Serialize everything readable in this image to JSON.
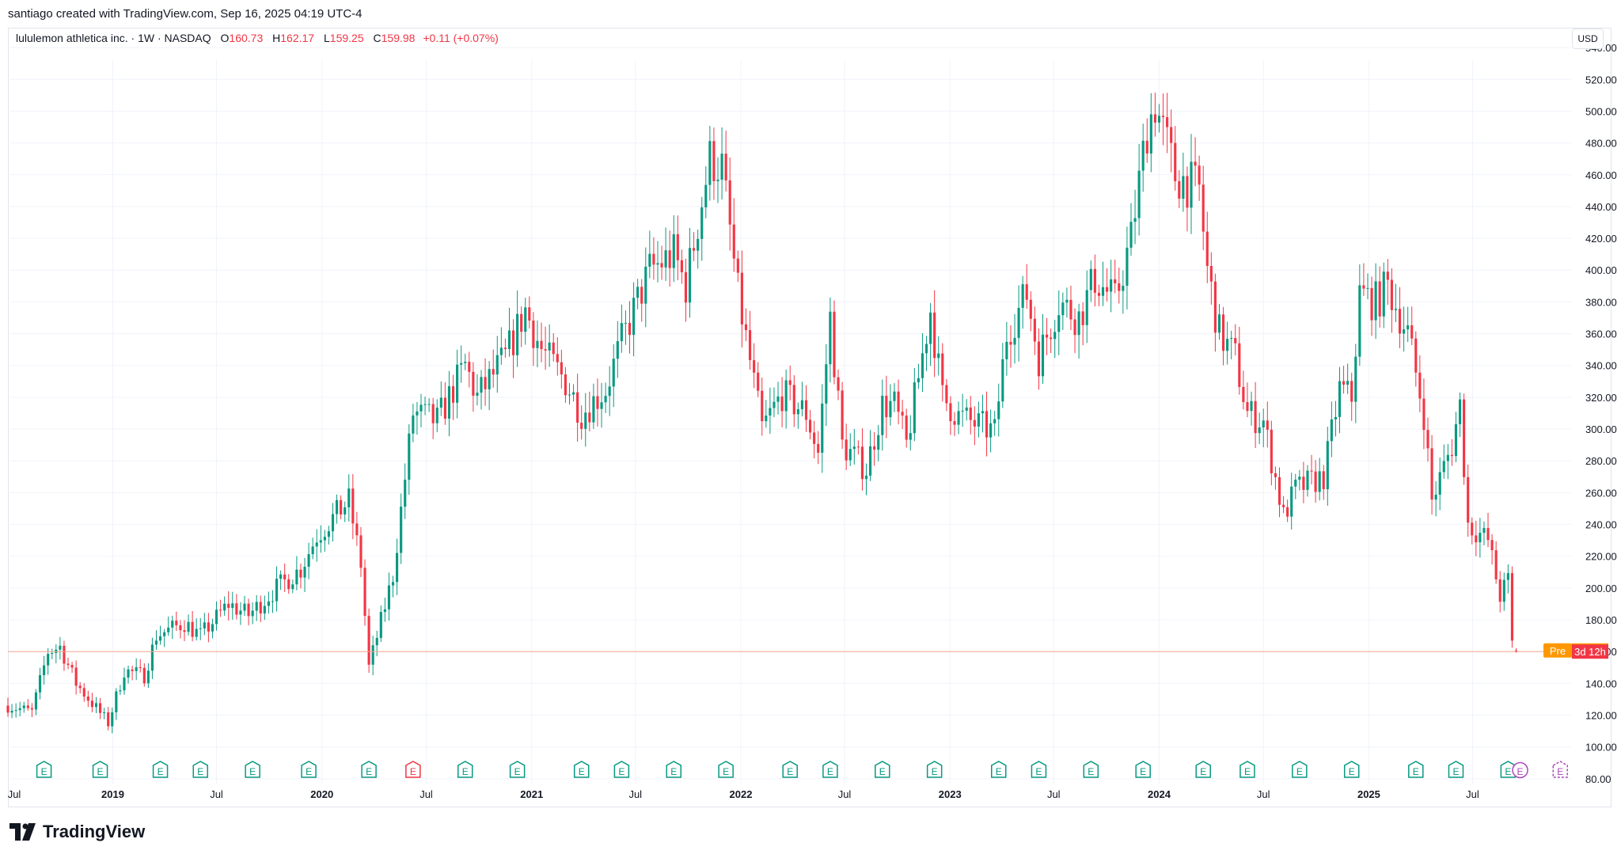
{
  "header": {
    "attribution": "santiago created with TradingView.com, Sep 16, 2025 04:19 UTC-4"
  },
  "legend": {
    "symbol": "lululemon athletica inc. · 1W · NASDAQ",
    "open_label": "O",
    "open": "160.73",
    "high_label": "H",
    "high": "162.17",
    "low_label": "L",
    "low": "159.25",
    "close_label": "C",
    "close": "159.98",
    "change": "+0.11 (+0.07%)"
  },
  "currency": "USD",
  "brand": {
    "name": "TradingView"
  },
  "colors": {
    "up": "#089981",
    "down": "#f23645",
    "premarket": "#ff9800",
    "current_line": "#f7a78e",
    "earnings_purple": "#ab47bc"
  },
  "chart_data": {
    "type": "candlestick",
    "interval": "1W",
    "y_axis": {
      "range": [
        62,
        552
      ],
      "ticks": [
        80,
        100,
        120,
        140,
        160,
        180,
        200,
        220,
        240,
        260,
        280,
        300,
        320,
        340,
        360,
        380,
        400,
        420,
        440,
        460,
        480,
        500,
        520,
        540
      ]
    },
    "x_axis": {
      "start": "2018-07-02",
      "end": "2025-12-20",
      "labels": [
        {
          "date": "2018-07-01",
          "text": "Jul",
          "bold": false
        },
        {
          "date": "2019-01-01",
          "text": "2019",
          "bold": true
        },
        {
          "date": "2019-07-01",
          "text": "Jul",
          "bold": false
        },
        {
          "date": "2020-01-01",
          "text": "2020",
          "bold": true
        },
        {
          "date": "2020-07-01",
          "text": "Jul",
          "bold": false
        },
        {
          "date": "2021-01-01",
          "text": "2021",
          "bold": true
        },
        {
          "date": "2021-07-01",
          "text": "Jul",
          "bold": false
        },
        {
          "date": "2022-01-01",
          "text": "2022",
          "bold": true
        },
        {
          "date": "2022-07-01",
          "text": "Jul",
          "bold": false
        },
        {
          "date": "2023-01-01",
          "text": "2023",
          "bold": true
        },
        {
          "date": "2023-07-01",
          "text": "Jul",
          "bold": false
        },
        {
          "date": "2024-01-01",
          "text": "2024",
          "bold": true
        },
        {
          "date": "2024-07-01",
          "text": "Jul",
          "bold": false
        },
        {
          "date": "2025-01-01",
          "text": "2025",
          "bold": true
        },
        {
          "date": "2025-07-01",
          "text": "Jul",
          "bold": false
        }
      ]
    },
    "price_anchors": [
      [
        "2018-07-02",
        126
      ],
      [
        "2018-08-13",
        122
      ],
      [
        "2018-09-10",
        160
      ],
      [
        "2018-10-01",
        163
      ],
      [
        "2018-10-29",
        140
      ],
      [
        "2018-12-24",
        115
      ],
      [
        "2019-01-21",
        148
      ],
      [
        "2019-02-25",
        145
      ],
      [
        "2019-03-18",
        170
      ],
      [
        "2019-05-06",
        178
      ],
      [
        "2019-06-03",
        170
      ],
      [
        "2019-07-22",
        190
      ],
      [
        "2019-08-26",
        183
      ],
      [
        "2019-10-14",
        200
      ],
      [
        "2019-11-25",
        212
      ],
      [
        "2019-12-23",
        233
      ],
      [
        "2020-02-17",
        255
      ],
      [
        "2020-03-09",
        215
      ],
      [
        "2020-03-23",
        150
      ],
      [
        "2020-05-04",
        208
      ],
      [
        "2020-06-08",
        310
      ],
      [
        "2020-07-20",
        305
      ],
      [
        "2020-09-07",
        340
      ],
      [
        "2020-09-28",
        320
      ],
      [
        "2020-11-16",
        345
      ],
      [
        "2020-12-21",
        375
      ],
      [
        "2021-01-18",
        350
      ],
      [
        "2021-03-01",
        330
      ],
      [
        "2021-03-29",
        310
      ],
      [
        "2021-05-10",
        325
      ],
      [
        "2021-06-07",
        355
      ],
      [
        "2021-07-26",
        400
      ],
      [
        "2021-09-06",
        410
      ],
      [
        "2021-09-27",
        390
      ],
      [
        "2021-11-08",
        470
      ],
      [
        "2021-11-29",
        465
      ],
      [
        "2021-12-27",
        385
      ],
      [
        "2022-02-07",
        300
      ],
      [
        "2022-03-14",
        322
      ],
      [
        "2022-04-25",
        310
      ],
      [
        "2022-05-16",
        285
      ],
      [
        "2022-06-06",
        370
      ],
      [
        "2022-06-27",
        290
      ],
      [
        "2022-08-08",
        275
      ],
      [
        "2022-09-05",
        315
      ],
      [
        "2022-09-26",
        315
      ],
      [
        "2022-10-17",
        290
      ],
      [
        "2022-11-28",
        375
      ],
      [
        "2022-12-19",
        320
      ],
      [
        "2023-01-16",
        308
      ],
      [
        "2023-03-20",
        298
      ],
      [
        "2023-04-10",
        360
      ],
      [
        "2023-05-15",
        385
      ],
      [
        "2023-06-05",
        345
      ],
      [
        "2023-07-10",
        380
      ],
      [
        "2023-08-14",
        370
      ],
      [
        "2023-09-11",
        395
      ],
      [
        "2023-10-16",
        380
      ],
      [
        "2023-11-13",
        420
      ],
      [
        "2023-12-11",
        490
      ],
      [
        "2023-12-25",
        505
      ],
      [
        "2024-01-29",
        460
      ],
      [
        "2024-03-11",
        450
      ],
      [
        "2024-03-25",
        400
      ],
      [
        "2024-04-15",
        360
      ],
      [
        "2024-05-13",
        345
      ],
      [
        "2024-06-03",
        310
      ],
      [
        "2024-07-01",
        305
      ],
      [
        "2024-08-05",
        245
      ],
      [
        "2024-08-26",
        262
      ],
      [
        "2024-10-14",
        270
      ],
      [
        "2024-11-11",
        325
      ],
      [
        "2024-12-02",
        320
      ],
      [
        "2024-12-16",
        385
      ],
      [
        "2025-01-13",
        380
      ],
      [
        "2025-02-03",
        390
      ],
      [
        "2025-03-10",
        360
      ],
      [
        "2025-04-07",
        310
      ],
      [
        "2025-04-21",
        255
      ],
      [
        "2025-05-26",
        290
      ],
      [
        "2025-06-09",
        315
      ],
      [
        "2025-06-23",
        240
      ],
      [
        "2025-07-28",
        230
      ],
      [
        "2025-08-18",
        195
      ],
      [
        "2025-09-01",
        205
      ],
      [
        "2025-09-08",
        165
      ],
      [
        "2025-09-15",
        160
      ]
    ],
    "last_bar": {
      "date": "2025-09-15",
      "open": 160.73,
      "high": 162.17,
      "low": 159.25,
      "close": 159.98
    },
    "current_price": 159.98,
    "premarket": {
      "label": "Pre",
      "price": "160.71"
    },
    "countdown": "3d 12h",
    "earnings": {
      "glyph": "E",
      "dates": [
        "2018-09-03",
        "2018-12-10",
        "2019-03-25",
        "2019-06-03",
        "2019-09-02",
        "2019-12-09",
        "2020-03-23",
        "2020-06-08",
        "2020-09-07",
        "2020-12-07",
        "2021-03-29",
        "2021-06-07",
        "2021-09-06",
        "2021-12-06",
        "2022-03-28",
        "2022-06-06",
        "2022-09-05",
        "2022-12-05",
        "2023-03-27",
        "2023-06-05",
        "2023-09-04",
        "2023-12-04",
        "2024-03-18",
        "2024-06-03",
        "2024-09-02",
        "2024-12-02",
        "2025-03-24",
        "2025-06-02",
        "2025-09-01"
      ],
      "negative_dates": [
        "2020-06-08"
      ],
      "upcoming": [
        "2025-09-22",
        "2025-12-01"
      ]
    }
  }
}
